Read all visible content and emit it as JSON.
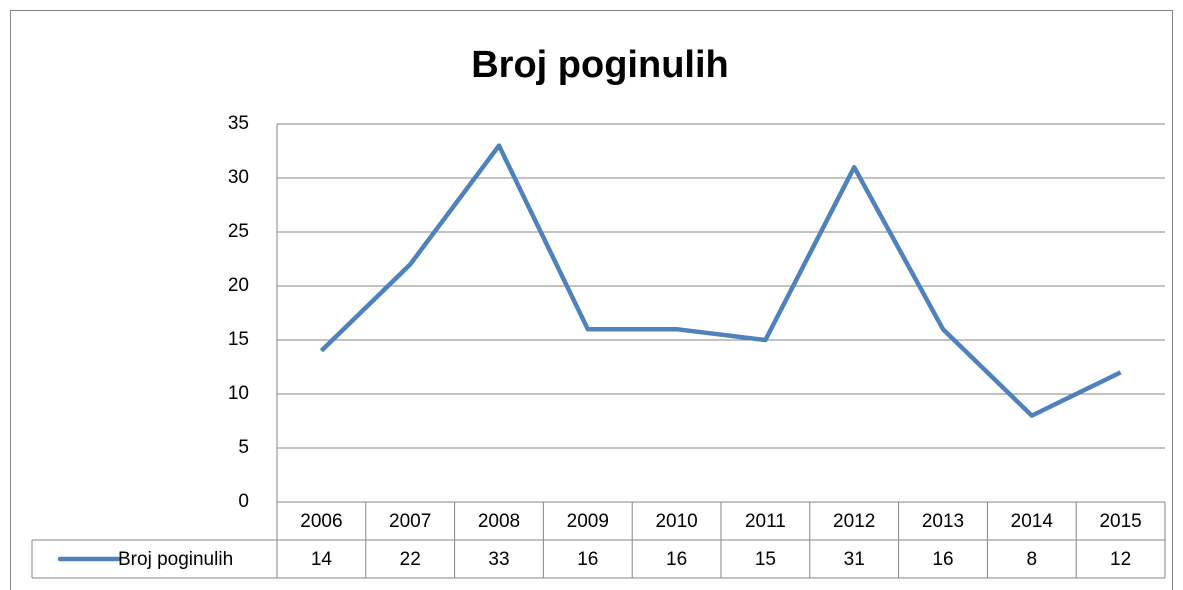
{
  "chart_data": {
    "type": "line",
    "title": "Broj poginulih",
    "categories": [
      "2006",
      "2007",
      "2008",
      "2009",
      "2010",
      "2011",
      "2012",
      "2013",
      "2014",
      "2015"
    ],
    "series": [
      {
        "name": "Broj poginulih",
        "color": "#4f81bd",
        "values": [
          14,
          22,
          33,
          16,
          16,
          15,
          31,
          16,
          8,
          12
        ]
      }
    ],
    "ylim": [
      0,
      35
    ],
    "yticks": [
      0,
      5,
      10,
      15,
      20,
      25,
      30,
      35
    ],
    "grid": true,
    "legend": "data-table"
  }
}
